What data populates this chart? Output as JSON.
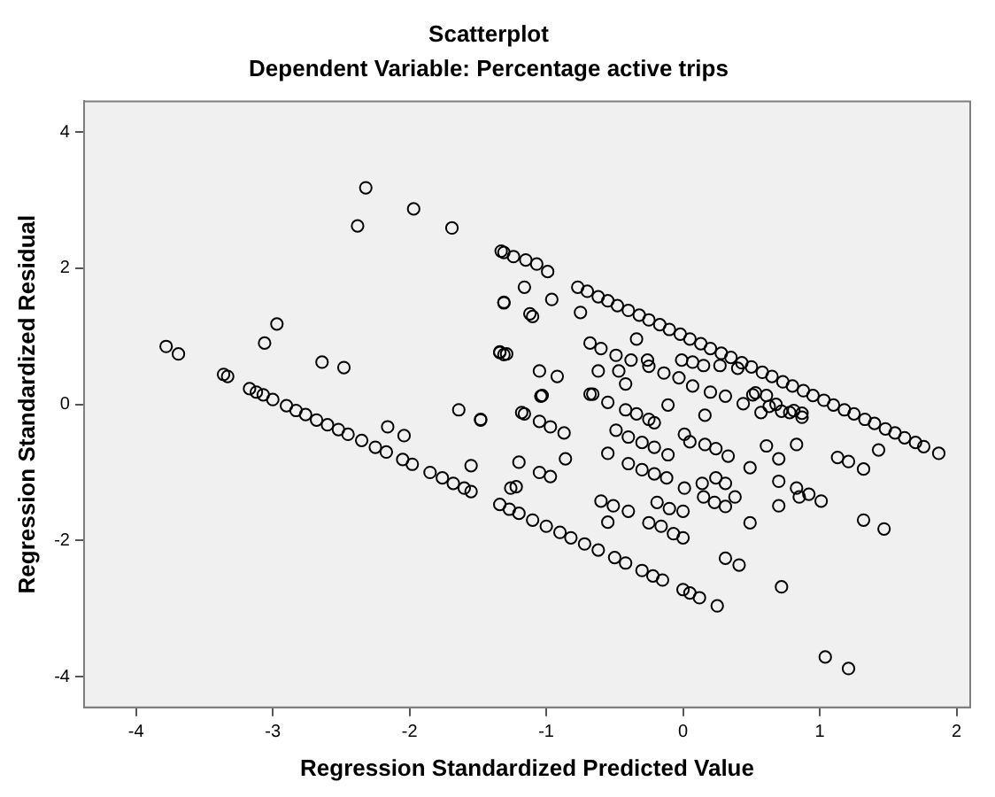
{
  "chart_data": {
    "type": "scatter",
    "title": "Scatterplot",
    "subtitle": "Dependent Variable: Percentage active trips",
    "xlabel": "Regression Standardized Predicted Value",
    "ylabel": "Regression Standardized Residual",
    "xlim": [
      -4.38,
      2.1
    ],
    "ylim": [
      -4.45,
      4.45
    ],
    "xticks": [
      -4,
      -3,
      -2,
      -1,
      0,
      1,
      2
    ],
    "yticks": [
      -4,
      -2,
      0,
      2,
      4
    ],
    "grid": false,
    "legend": false,
    "marker": "circle",
    "series": [
      {
        "color": "#000000",
        "x": [
          -3.78,
          -3.69,
          -3.36,
          -3.33,
          -3.06,
          -2.97,
          -2.64,
          -2.48,
          -2.38,
          -2.32,
          -1.97,
          -1.69,
          -1.31,
          -1.31,
          -1.34,
          -1.29,
          -2.16,
          -2.04,
          -1.64,
          -1.48,
          -1.55,
          -1.26,
          -3.17,
          -3.12,
          -3.07,
          -3.0,
          -2.9,
          -2.83,
          -2.76,
          -2.68,
          -2.6,
          -2.52,
          -2.45,
          -2.35,
          -2.25,
          -2.17,
          -2.05,
          -1.98,
          -1.85,
          -1.76,
          -1.68,
          -1.6,
          -1.55,
          -1.34,
          -1.27,
          -1.2,
          -1.1,
          -1.0,
          -0.9,
          -0.82,
          -0.72,
          -0.62,
          -0.5,
          -0.42,
          -0.3,
          -0.22,
          -0.15,
          0.0,
          0.05,
          0.12,
          0.25,
          -0.77,
          -0.7,
          -0.62,
          -0.55,
          -0.48,
          -0.4,
          -0.32,
          -0.25,
          -0.17,
          -0.1,
          -0.02,
          0.05,
          0.13,
          0.2,
          0.28,
          0.35,
          0.43,
          0.5,
          0.58,
          0.65,
          0.73,
          0.8,
          0.88,
          0.95,
          1.03,
          1.1,
          1.18,
          1.25,
          1.33,
          1.4,
          1.48,
          1.55,
          1.62,
          1.7,
          1.76,
          1.87,
          -1.33,
          -1.24,
          -1.15,
          -1.07,
          -0.99,
          -1.16,
          -1.31,
          -0.96,
          -1.12,
          -1.1,
          -0.75,
          -1.34,
          -1.31,
          -1.05,
          -0.92,
          -1.04,
          -1.18,
          -0.68,
          -0.34,
          -0.62,
          -0.47,
          -0.42,
          -0.66,
          -0.26,
          -0.11,
          -0.01,
          0.07,
          0.15,
          0.27,
          0.4,
          0.53,
          0.61,
          0.68,
          0.81,
          0.87,
          -0.6,
          -0.49,
          -0.38,
          -0.25,
          -0.14,
          -0.03,
          0.07,
          0.2,
          0.31,
          0.44,
          0.57,
          -1.48,
          -1.16,
          -1.05,
          -0.97,
          -0.87,
          -1.03,
          -0.68,
          -0.55,
          -0.42,
          -0.34,
          -0.25,
          -0.21,
          -0.86,
          -1.2,
          -1.05,
          -0.97,
          -1.22,
          -0.55,
          -0.49,
          -0.4,
          -0.3,
          -0.21,
          -0.11,
          -0.4,
          -0.3,
          -0.21,
          -0.12,
          0.01,
          0.14,
          0.24,
          0.31,
          0.15,
          0.23,
          0.31,
          0.38,
          -0.6,
          -0.51,
          -0.4,
          -0.55,
          -0.19,
          -0.1,
          0.0,
          -0.25,
          -0.16,
          -0.07,
          0.0,
          0.31,
          0.41,
          0.49,
          0.49,
          0.7,
          0.83,
          0.92,
          1.01,
          0.85,
          0.7,
          0.7,
          0.61,
          0.83,
          0.01,
          0.05,
          0.16,
          0.24,
          0.33,
          0.16,
          1.13,
          1.21,
          1.32,
          1.43,
          1.32,
          1.47,
          1.04,
          1.21,
          0.72,
          0.51,
          0.63,
          0.72,
          0.78,
          0.87
        ],
        "values": [
          0.85,
          0.74,
          0.44,
          0.41,
          0.9,
          1.18,
          0.62,
          0.54,
          2.62,
          3.18,
          2.87,
          2.59,
          2.23,
          1.49,
          0.77,
          0.74,
          -0.33,
          -0.46,
          -0.08,
          -0.23,
          -0.9,
          -1.23,
          0.23,
          0.18,
          0.14,
          0.07,
          -0.02,
          -0.09,
          -0.15,
          -0.23,
          -0.3,
          -0.37,
          -0.44,
          -0.53,
          -0.63,
          -0.7,
          -0.81,
          -0.88,
          -1.0,
          -1.08,
          -1.16,
          -1.23,
          -1.28,
          -1.47,
          -1.54,
          -1.6,
          -1.7,
          -1.79,
          -1.88,
          -1.96,
          -2.05,
          -2.14,
          -2.25,
          -2.33,
          -2.44,
          -2.52,
          -2.58,
          -2.72,
          -2.77,
          -2.84,
          -2.96,
          1.72,
          1.66,
          1.58,
          1.52,
          1.45,
          1.38,
          1.31,
          1.24,
          1.17,
          1.1,
          1.03,
          0.96,
          0.89,
          0.82,
          0.75,
          0.69,
          0.61,
          0.55,
          0.47,
          0.41,
          0.33,
          0.27,
          0.2,
          0.13,
          0.06,
          -0.01,
          -0.08,
          -0.14,
          -0.22,
          -0.28,
          -0.36,
          -0.42,
          -0.49,
          -0.56,
          -0.62,
          -0.72,
          2.25,
          2.17,
          2.12,
          2.06,
          1.95,
          1.72,
          1.5,
          1.54,
          1.33,
          1.29,
          1.35,
          0.76,
          0.73,
          0.49,
          0.41,
          0.12,
          -0.12,
          0.9,
          0.96,
          0.49,
          0.49,
          0.3,
          0.15,
          0.65,
          -0.01,
          0.65,
          0.62,
          0.57,
          0.57,
          0.53,
          0.17,
          0.13,
          0.0,
          -0.09,
          -0.13,
          0.82,
          0.72,
          0.65,
          0.56,
          0.46,
          0.39,
          0.27,
          0.18,
          0.12,
          0.01,
          -0.12,
          -0.22,
          -0.14,
          -0.25,
          -0.33,
          -0.42,
          0.13,
          0.15,
          0.03,
          -0.08,
          -0.14,
          -0.22,
          -0.27,
          -0.8,
          -0.85,
          -1.0,
          -1.06,
          -1.21,
          -0.72,
          -0.38,
          -0.48,
          -0.56,
          -0.63,
          -0.74,
          -0.87,
          -0.96,
          -1.02,
          -1.08,
          -1.23,
          -1.16,
          -1.08,
          -1.16,
          -1.36,
          -1.44,
          -1.5,
          -1.36,
          -1.42,
          -1.49,
          -1.57,
          -1.73,
          -1.44,
          -1.53,
          -1.57,
          -1.74,
          -1.79,
          -1.9,
          -1.96,
          -2.26,
          -2.36,
          -1.74,
          -0.93,
          -1.13,
          -1.23,
          -1.32,
          -1.42,
          -1.36,
          -1.49,
          -0.8,
          -0.61,
          -0.59,
          -0.44,
          -0.55,
          -0.59,
          -0.65,
          -0.76,
          -0.16,
          -0.78,
          -0.84,
          -0.95,
          -0.67,
          -1.7,
          -1.83,
          -3.71,
          -3.88,
          -2.68,
          0.14,
          -0.03,
          -0.1,
          -0.12,
          -0.19
        ]
      }
    ]
  }
}
